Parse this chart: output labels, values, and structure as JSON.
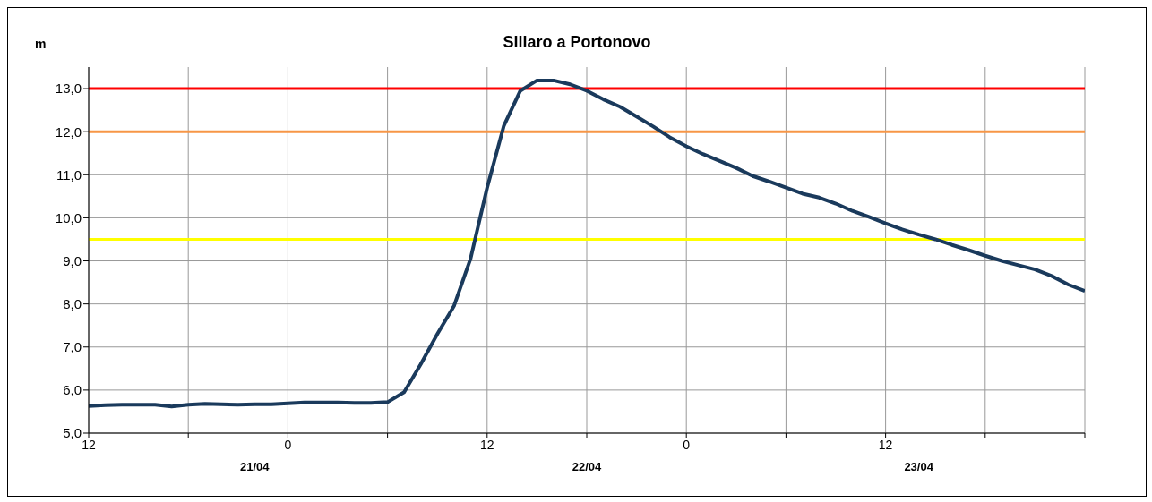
{
  "chart_data": {
    "type": "line",
    "title": "Sillaro a Portonovo",
    "ylabel": "m",
    "categories": [
      "12",
      null,
      null,
      null,
      null,
      null,
      null,
      null,
      null,
      null,
      null,
      null,
      "0",
      null,
      null,
      null,
      null,
      null,
      null,
      null,
      null,
      null,
      null,
      null,
      "12",
      null,
      null,
      null,
      null,
      null,
      null,
      null,
      null,
      null,
      null,
      null,
      "0",
      null,
      null,
      null,
      null,
      null,
      null,
      null,
      null,
      null,
      null,
      null,
      "12",
      null,
      null,
      null,
      null,
      null,
      null,
      null,
      null,
      null,
      null,
      null,
      null
    ],
    "ylim": [
      5,
      13.5
    ],
    "yticks": [
      {
        "value": 5,
        "label": "5,0"
      },
      {
        "value": 6,
        "label": "6,0"
      },
      {
        "value": 7,
        "label": "7,0"
      },
      {
        "value": 8,
        "label": "8,0"
      },
      {
        "value": 9,
        "label": "9,0"
      },
      {
        "value": 10,
        "label": "10,0"
      },
      {
        "value": 11,
        "label": "11,0"
      },
      {
        "value": 12,
        "label": "12,0"
      },
      {
        "value": 13,
        "label": "13,0"
      }
    ],
    "annotations": [
      "21/04",
      "22/04",
      "23/04"
    ],
    "grid": true,
    "marker": "none",
    "line_style": "solid",
    "ref_lines": [
      {
        "axis": "y",
        "value": 13,
        "label": null,
        "color": "#ff0000"
      },
      {
        "axis": "y",
        "value": 12,
        "label": null,
        "color": "#f79646"
      },
      {
        "axis": "y",
        "value": 9.5,
        "label": null,
        "color": "#ffff00"
      }
    ],
    "series": [
      {
        "color": "#1a3a5c",
        "values": [
          5.63,
          5.65,
          5.66,
          5.66,
          5.66,
          5.62,
          5.66,
          5.68,
          5.67,
          5.66,
          5.67,
          5.67,
          5.69,
          5.71,
          5.71,
          5.71,
          5.7,
          5.7,
          5.72,
          5.95,
          6.6,
          7.3,
          7.95,
          9.05,
          10.7,
          12.13,
          12.95,
          13.19,
          13.19,
          13.1,
          12.95,
          12.75,
          12.58,
          12.35,
          12.12,
          11.87,
          11.66,
          11.48,
          11.32,
          11.16,
          10.97,
          10.84,
          10.7,
          10.56,
          10.47,
          10.33,
          10.16,
          10.02,
          9.87,
          9.73,
          9.61,
          9.5,
          9.37,
          9.25,
          9.12,
          9.0,
          8.9,
          8.8,
          8.65,
          8.45,
          8.3
        ]
      }
    ]
  }
}
